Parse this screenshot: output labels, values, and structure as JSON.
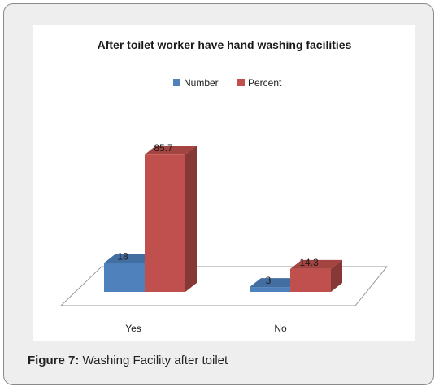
{
  "figure": {
    "caption_label": "Figure 7:",
    "caption_text": " Washing Facility after toilet"
  },
  "chart_data": {
    "type": "bar",
    "title": "After toilet worker have hand washing facilities",
    "categories": [
      "Yes",
      "No"
    ],
    "series": [
      {
        "name": "Number",
        "values": [
          18,
          3
        ],
        "color": "#4f81bd"
      },
      {
        "name": "Percent",
        "values": [
          85.7,
          14.3
        ],
        "color": "#c0504d"
      }
    ],
    "data_labels": [
      [
        "18",
        "3"
      ],
      [
        "85.7",
        "14.3"
      ]
    ],
    "ylim": [
      0,
      100
    ],
    "legend": "top",
    "grid": false,
    "style": "3d-column"
  }
}
